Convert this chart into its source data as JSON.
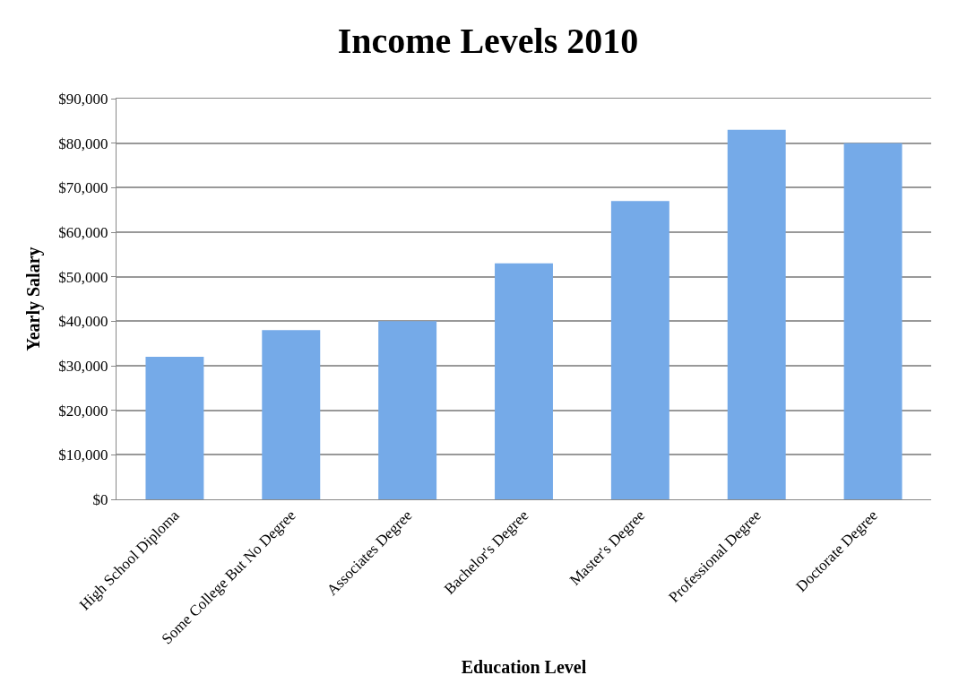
{
  "chart_data": {
    "type": "bar",
    "title": "Income Levels 2010",
    "xlabel": "Education Level",
    "ylabel": "Yearly Salary",
    "categories": [
      "High School Diploma",
      "Some College But No Degree",
      "Associates Degree",
      "Bachelor's Degree",
      "Master's Degree",
      "Professional Degree",
      "Doctorate Degree"
    ],
    "values": [
      32000,
      38000,
      40000,
      53000,
      67000,
      83000,
      80000
    ],
    "color": "#75aae8",
    "ylim": [
      0,
      90000
    ],
    "yticks": [
      {
        "value": 0,
        "label": "$0"
      },
      {
        "value": 10000,
        "label": "$10,000"
      },
      {
        "value": 20000,
        "label": "$20,000"
      },
      {
        "value": 30000,
        "label": "$30,000"
      },
      {
        "value": 40000,
        "label": "$40,000"
      },
      {
        "value": 50000,
        "label": "$50,000"
      },
      {
        "value": 60000,
        "label": "$60,000"
      },
      {
        "value": 70000,
        "label": "$70,000"
      },
      {
        "value": 80000,
        "label": "$80,000"
      },
      {
        "value": 90000,
        "label": "$90,000"
      }
    ],
    "grid": "y"
  }
}
